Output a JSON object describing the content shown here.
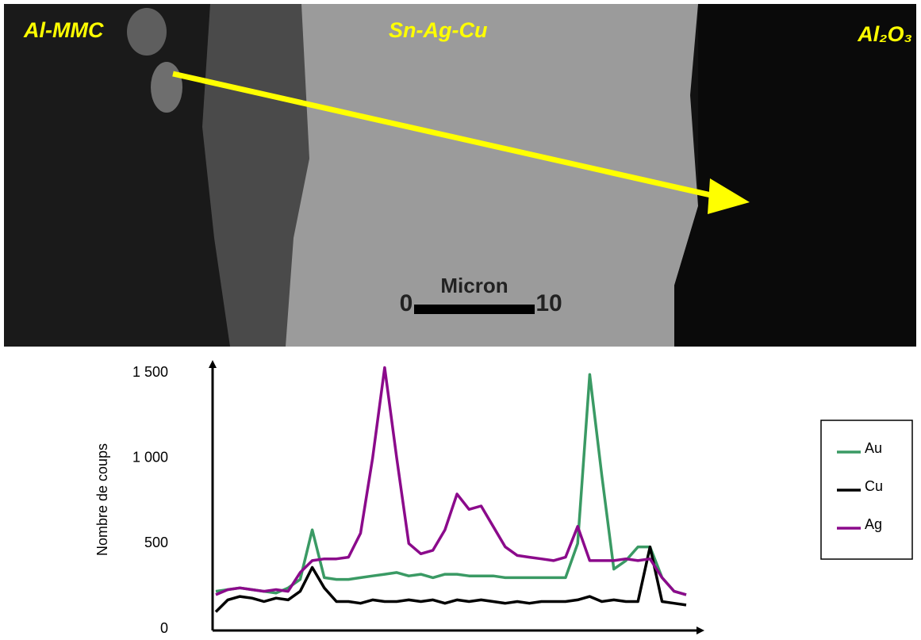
{
  "image": {
    "labels": [
      "Al-MMC",
      "Sn-Ag-Cu",
      "Al₂O₃"
    ],
    "scale_bar": {
      "title": "Micron",
      "start": "0",
      "end": "10"
    }
  },
  "chart_data": {
    "type": "line",
    "y_label": "Nombre de coups",
    "ylim": [
      0,
      1500
    ],
    "yticks": [
      0,
      500,
      {
        "value": 1000,
        "label": "1 000"
      },
      {
        "value": 1500,
        "label": "1 500"
      }
    ],
    "legend": "right",
    "series": [
      {
        "name": "Au",
        "color": "#3a9a64",
        "values": [
          220,
          230,
          240,
          230,
          220,
          210,
          240,
          290,
          580,
          300,
          290,
          290,
          300,
          310,
          320,
          330,
          310,
          320,
          300,
          320,
          320,
          310,
          310,
          310,
          300,
          300,
          300,
          300,
          300,
          300,
          500,
          1490,
          900,
          350,
          400,
          480,
          480,
          300,
          220,
          200
        ]
      },
      {
        "name": "Cu",
        "color": "#000000",
        "values": [
          100,
          170,
          190,
          180,
          160,
          180,
          170,
          220,
          360,
          240,
          160,
          160,
          150,
          170,
          160,
          160,
          170,
          160,
          170,
          150,
          170,
          160,
          170,
          160,
          150,
          160,
          150,
          160,
          160,
          160,
          170,
          190,
          160,
          170,
          160,
          160,
          480,
          160,
          150,
          140
        ]
      },
      {
        "name": "Ag",
        "color": "#8b0a8b",
        "values": [
          200,
          230,
          240,
          230,
          220,
          230,
          220,
          330,
          400,
          410,
          410,
          420,
          560,
          1000,
          1530,
          1000,
          500,
          440,
          460,
          580,
          790,
          700,
          720,
          600,
          480,
          430,
          420,
          410,
          400,
          420,
          600,
          400,
          400,
          400,
          410,
          400,
          410,
          300,
          220,
          200
        ]
      }
    ]
  }
}
